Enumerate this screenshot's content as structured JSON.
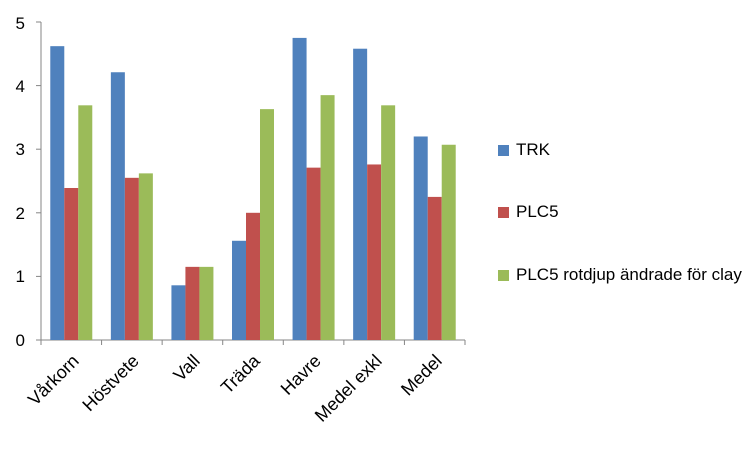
{
  "chart_data": {
    "type": "bar",
    "categories": [
      "Vårkorn",
      "Höstvete",
      "Vall",
      "Träda",
      "Havre",
      "Medel exkl",
      "Medel"
    ],
    "series": [
      {
        "name": "TRK",
        "color": "#4f81bd",
        "values": [
          4.62,
          4.21,
          0.86,
          1.56,
          4.75,
          4.58,
          3.2
        ]
      },
      {
        "name": "PLC5",
        "color": "#c0504d",
        "values": [
          2.39,
          2.55,
          1.15,
          2.0,
          2.71,
          2.76,
          2.25
        ]
      },
      {
        "name": "PLC5 rotdjup ändrade för clay",
        "color": "#9bbb59",
        "values": [
          3.69,
          2.62,
          1.15,
          3.63,
          3.85,
          3.69,
          3.07
        ]
      }
    ],
    "yticks": [
      "0",
      "1",
      "2",
      "3",
      "4",
      "5"
    ],
    "ylim": [
      0,
      5
    ],
    "grid": false,
    "legend_position": "right"
  }
}
